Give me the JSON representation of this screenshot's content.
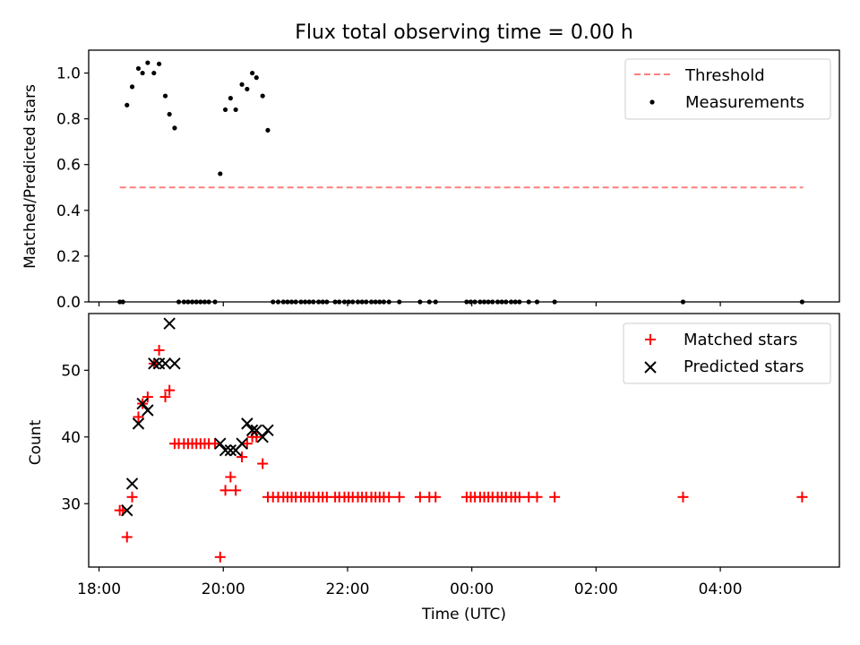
{
  "chart_data": [
    {
      "type": "scatter",
      "title": "Flux total observing time = 0.00 h",
      "ylabel": "Matched/Predicted stars",
      "xlabel": "",
      "xlim": [
        "17:50",
        "05:55"
      ],
      "ylim": [
        0,
        1.1
      ],
      "y_ticks": [
        "0.0",
        "0.2",
        "0.4",
        "0.6",
        "0.8",
        "1.0"
      ],
      "legend_position": "top-right",
      "series": [
        {
          "name": "Threshold",
          "style": "dashed-line",
          "color": "#ff7f7f",
          "points": [
            [
              "18:20",
              0.5
            ],
            [
              "05:20",
              0.5
            ]
          ]
        },
        {
          "name": "Measurements",
          "style": "dot",
          "color": "#000000",
          "points": [
            [
              "18:20",
              0.0
            ],
            [
              "18:23",
              0.0
            ],
            [
              "18:27",
              0.86
            ],
            [
              "18:32",
              0.94
            ],
            [
              "18:38",
              1.02
            ],
            [
              "18:42",
              1.0
            ],
            [
              "18:47",
              1.045
            ],
            [
              "18:53",
              1.0
            ],
            [
              "18:58",
              1.04
            ],
            [
              "19:04",
              0.9
            ],
            [
              "19:08",
              0.82
            ],
            [
              "19:13",
              0.76
            ],
            [
              "19:17",
              0.0
            ],
            [
              "19:22",
              0.0
            ],
            [
              "19:26",
              0.0
            ],
            [
              "19:30",
              0.0
            ],
            [
              "19:34",
              0.0
            ],
            [
              "19:38",
              0.0
            ],
            [
              "19:42",
              0.0
            ],
            [
              "19:46",
              0.0
            ],
            [
              "19:52",
              0.0
            ],
            [
              "19:57",
              0.56
            ],
            [
              "20:02",
              0.84
            ],
            [
              "20:07",
              0.89
            ],
            [
              "20:12",
              0.84
            ],
            [
              "20:18",
              0.95
            ],
            [
              "20:23",
              0.93
            ],
            [
              "20:28",
              1.0
            ],
            [
              "20:32",
              0.98
            ],
            [
              "20:38",
              0.9
            ],
            [
              "20:43",
              0.75
            ],
            [
              "20:48",
              0.0
            ],
            [
              "20:53",
              0.0
            ],
            [
              "20:58",
              0.0
            ],
            [
              "21:02",
              0.0
            ],
            [
              "21:06",
              0.0
            ],
            [
              "21:10",
              0.0
            ],
            [
              "21:15",
              0.0
            ],
            [
              "21:19",
              0.0
            ],
            [
              "21:23",
              0.0
            ],
            [
              "21:27",
              0.0
            ],
            [
              "21:32",
              0.0
            ],
            [
              "21:36",
              0.0
            ],
            [
              "21:40",
              0.0
            ],
            [
              "21:48",
              0.0
            ],
            [
              "21:52",
              0.0
            ],
            [
              "21:57",
              0.0
            ],
            [
              "22:01",
              0.0
            ],
            [
              "22:05",
              0.0
            ],
            [
              "22:10",
              0.0
            ],
            [
              "22:14",
              0.0
            ],
            [
              "22:18",
              0.0
            ],
            [
              "22:23",
              0.0
            ],
            [
              "22:27",
              0.0
            ],
            [
              "22:31",
              0.0
            ],
            [
              "22:35",
              0.0
            ],
            [
              "22:40",
              0.0
            ],
            [
              "22:50",
              0.0
            ],
            [
              "23:10",
              0.0
            ],
            [
              "23:19",
              0.0
            ],
            [
              "23:25",
              0.0
            ],
            [
              "23:55",
              0.0
            ],
            [
              "23:59",
              0.0
            ],
            [
              "00:03",
              0.0
            ],
            [
              "00:08",
              0.0
            ],
            [
              "00:12",
              0.0
            ],
            [
              "00:16",
              0.0
            ],
            [
              "00:20",
              0.0
            ],
            [
              "00:25",
              0.0
            ],
            [
              "00:29",
              0.0
            ],
            [
              "00:33",
              0.0
            ],
            [
              "00:38",
              0.0
            ],
            [
              "00:42",
              0.0
            ],
            [
              "00:46",
              0.0
            ],
            [
              "00:55",
              0.0
            ],
            [
              "01:03",
              0.0
            ],
            [
              "01:20",
              0.0
            ],
            [
              "03:24",
              0.0
            ],
            [
              "05:19",
              0.0
            ]
          ]
        }
      ]
    },
    {
      "type": "scatter",
      "title": "",
      "xlabel": "Time (UTC)",
      "ylabel": "Count",
      "xlim": [
        "17:50",
        "05:55"
      ],
      "ylim": [
        20.5,
        58.5
      ],
      "x_ticks": [
        "18:00",
        "20:00",
        "22:00",
        "00:00",
        "02:00",
        "04:00"
      ],
      "y_ticks": [
        "30",
        "40",
        "50"
      ],
      "legend_position": "top-right",
      "series": [
        {
          "name": "Matched stars",
          "style": "plus",
          "color": "#ff0000",
          "points": [
            [
              "18:20",
              29
            ],
            [
              "18:23",
              29
            ],
            [
              "18:27",
              25
            ],
            [
              "18:32",
              31
            ],
            [
              "18:38",
              43
            ],
            [
              "18:42",
              45
            ],
            [
              "18:47",
              46
            ],
            [
              "18:53",
              51
            ],
            [
              "18:58",
              53
            ],
            [
              "19:04",
              46
            ],
            [
              "19:08",
              47
            ],
            [
              "19:13",
              39
            ],
            [
              "19:17",
              39
            ],
            [
              "19:22",
              39
            ],
            [
              "19:26",
              39
            ],
            [
              "19:30",
              39
            ],
            [
              "19:34",
              39
            ],
            [
              "19:38",
              39
            ],
            [
              "19:42",
              39
            ],
            [
              "19:46",
              39
            ],
            [
              "19:52",
              39
            ],
            [
              "19:57",
              22
            ],
            [
              "20:02",
              32
            ],
            [
              "20:07",
              34
            ],
            [
              "20:12",
              32
            ],
            [
              "20:18",
              37
            ],
            [
              "20:23",
              39
            ],
            [
              "20:28",
              40
            ],
            [
              "20:32",
              40
            ],
            [
              "20:38",
              36
            ],
            [
              "20:43",
              31
            ],
            [
              "20:48",
              31
            ],
            [
              "20:53",
              31
            ],
            [
              "20:58",
              31
            ],
            [
              "21:02",
              31
            ],
            [
              "21:06",
              31
            ],
            [
              "21:10",
              31
            ],
            [
              "21:15",
              31
            ],
            [
              "21:19",
              31
            ],
            [
              "21:23",
              31
            ],
            [
              "21:27",
              31
            ],
            [
              "21:32",
              31
            ],
            [
              "21:36",
              31
            ],
            [
              "21:40",
              31
            ],
            [
              "21:48",
              31
            ],
            [
              "21:52",
              31
            ],
            [
              "21:57",
              31
            ],
            [
              "22:01",
              31
            ],
            [
              "22:05",
              31
            ],
            [
              "22:10",
              31
            ],
            [
              "22:14",
              31
            ],
            [
              "22:18",
              31
            ],
            [
              "22:23",
              31
            ],
            [
              "22:27",
              31
            ],
            [
              "22:31",
              31
            ],
            [
              "22:35",
              31
            ],
            [
              "22:40",
              31
            ],
            [
              "22:50",
              31
            ],
            [
              "23:10",
              31
            ],
            [
              "23:19",
              31
            ],
            [
              "23:25",
              31
            ],
            [
              "23:55",
              31
            ],
            [
              "23:59",
              31
            ],
            [
              "00:03",
              31
            ],
            [
              "00:08",
              31
            ],
            [
              "00:12",
              31
            ],
            [
              "00:16",
              31
            ],
            [
              "00:20",
              31
            ],
            [
              "00:25",
              31
            ],
            [
              "00:29",
              31
            ],
            [
              "00:33",
              31
            ],
            [
              "00:38",
              31
            ],
            [
              "00:42",
              31
            ],
            [
              "00:46",
              31
            ],
            [
              "00:55",
              31
            ],
            [
              "01:03",
              31
            ],
            [
              "01:20",
              31
            ],
            [
              "03:24",
              31
            ],
            [
              "05:19",
              31
            ]
          ]
        },
        {
          "name": "Predicted stars",
          "style": "cross",
          "color": "#000000",
          "points": [
            [
              "18:27",
              29
            ],
            [
              "18:32",
              33
            ],
            [
              "18:38",
              42
            ],
            [
              "18:42",
              45
            ],
            [
              "18:47",
              44
            ],
            [
              "18:53",
              51
            ],
            [
              "18:58",
              51
            ],
            [
              "19:04",
              51
            ],
            [
              "19:08",
              57
            ],
            [
              "19:13",
              51
            ],
            [
              "19:57",
              39
            ],
            [
              "20:02",
              38
            ],
            [
              "20:07",
              38
            ],
            [
              "20:12",
              38
            ],
            [
              "20:18",
              39
            ],
            [
              "20:23",
              42
            ],
            [
              "20:28",
              41
            ],
            [
              "20:32",
              41
            ],
            [
              "20:38",
              40
            ],
            [
              "20:43",
              41
            ]
          ]
        }
      ]
    }
  ]
}
